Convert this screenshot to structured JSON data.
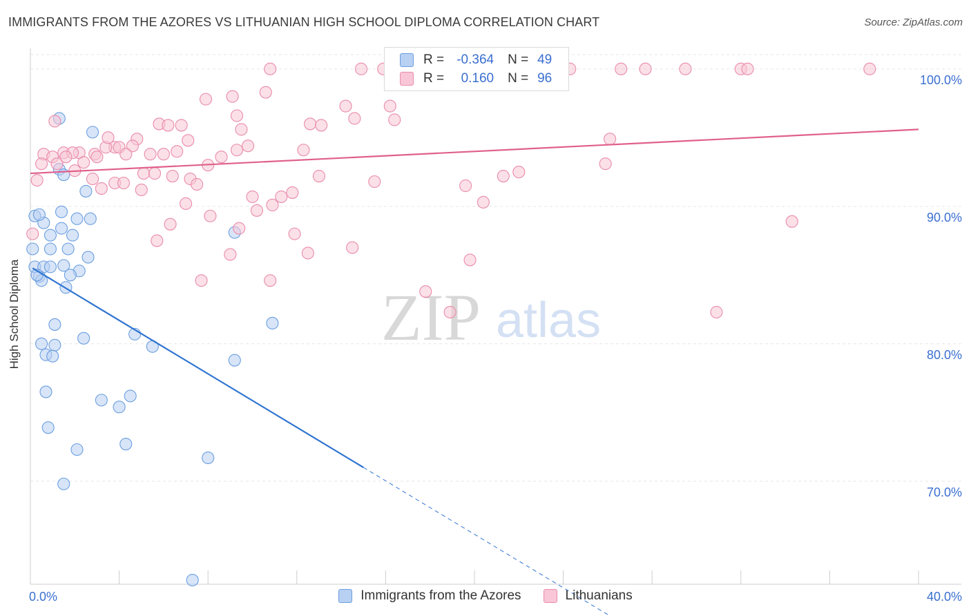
{
  "header": {
    "title": "IMMIGRANTS FROM THE AZORES VS LITHUANIAN HIGH SCHOOL DIPLOMA CORRELATION CHART",
    "source": "Source: ZipAtlas.com"
  },
  "watermark": {
    "zip": "ZIP",
    "atlas": "atlas"
  },
  "colors": {
    "azores_fill": "#b8d0f2",
    "azores_stroke": "#6a9ee0",
    "azores_line": "#2f74d0",
    "lith_fill": "#f8c6d6",
    "lith_stroke": "#e98aab",
    "lith_line": "#e0608a",
    "tick_text": "#3a6fd0"
  },
  "legend": {
    "r_label": "R =",
    "n_label": "N =",
    "azores": {
      "r": "-0.364",
      "n": "49"
    },
    "lith": {
      "r": "0.160",
      "n": "96"
    }
  },
  "chart_data": {
    "type": "scatter",
    "title": "IMMIGRANTS FROM THE AZORES VS LITHUANIAN HIGH SCHOOL DIPLOMA CORRELATION CHART",
    "xlabel": "",
    "ylabel": "High School Diploma",
    "xlim": [
      0,
      40
    ],
    "ylim": [
      62.5,
      101.5
    ],
    "x_tick_labels": [
      {
        "value": 0,
        "label": "0.0%"
      },
      {
        "value": 40,
        "label": "40.0%"
      }
    ],
    "y_tick_labels": [
      {
        "value": 70,
        "label": "70.0%"
      },
      {
        "value": 80,
        "label": "80.0%"
      },
      {
        "value": 90,
        "label": "90.0%"
      },
      {
        "value": 100,
        "label": "100.0%"
      }
    ],
    "grid": true,
    "legend_position": "top-center",
    "series": [
      {
        "name": "Immigrants from the Azores",
        "r": -0.364,
        "n": 49,
        "trend": {
          "x0": 0.1,
          "y0": 85.5,
          "x1": 15.0,
          "y1": 71.0,
          "dash_x1": 26.2,
          "dash_y1": 60.1
        },
        "points": [
          [
            1.3,
            96.4
          ],
          [
            2.8,
            95.4
          ],
          [
            1.3,
            92.7
          ],
          [
            1.5,
            92.3
          ],
          [
            2.5,
            91.1
          ],
          [
            0.2,
            89.3
          ],
          [
            0.6,
            88.8
          ],
          [
            1.4,
            89.6
          ],
          [
            2.1,
            89.1
          ],
          [
            1.4,
            88.4
          ],
          [
            0.9,
            87.9
          ],
          [
            1.9,
            87.9
          ],
          [
            0.1,
            86.9
          ],
          [
            0.9,
            86.9
          ],
          [
            1.7,
            86.9
          ],
          [
            2.6,
            86.3
          ],
          [
            0.2,
            85.6
          ],
          [
            0.6,
            85.6
          ],
          [
            0.9,
            85.6
          ],
          [
            1.5,
            85.7
          ],
          [
            2.2,
            85.3
          ],
          [
            0.4,
            84.9
          ],
          [
            0.5,
            84.6
          ],
          [
            1.8,
            85.0
          ],
          [
            1.6,
            84.1
          ],
          [
            9.2,
            88.1
          ],
          [
            1.1,
            81.4
          ],
          [
            10.9,
            81.5
          ],
          [
            2.4,
            80.4
          ],
          [
            0.5,
            80.0
          ],
          [
            1.1,
            79.9
          ],
          [
            4.7,
            80.7
          ],
          [
            5.5,
            79.8
          ],
          [
            0.7,
            79.2
          ],
          [
            1.0,
            79.1
          ],
          [
            9.2,
            78.8
          ],
          [
            0.7,
            76.5
          ],
          [
            3.2,
            75.9
          ],
          [
            4.5,
            76.2
          ],
          [
            4.0,
            75.4
          ],
          [
            0.8,
            73.9
          ],
          [
            4.3,
            72.7
          ],
          [
            2.1,
            72.3
          ],
          [
            8.0,
            71.7
          ],
          [
            1.5,
            69.8
          ],
          [
            7.3,
            62.8
          ],
          [
            0.3,
            85.0
          ],
          [
            2.7,
            89.1
          ],
          [
            0.4,
            89.4
          ]
        ]
      },
      {
        "name": "Lithuanians",
        "r": 0.16,
        "n": 96,
        "trend": {
          "x0": 0.0,
          "y0": 92.4,
          "x1": 40.0,
          "y1": 95.6
        },
        "points": [
          [
            10.8,
            100.0
          ],
          [
            14.9,
            100.0
          ],
          [
            15.9,
            100.0
          ],
          [
            22.6,
            100.0
          ],
          [
            23.6,
            100.0
          ],
          [
            24.3,
            100.0
          ],
          [
            26.6,
            100.0
          ],
          [
            27.7,
            100.0
          ],
          [
            29.5,
            100.0
          ],
          [
            32.0,
            100.0
          ],
          [
            32.3,
            100.0
          ],
          [
            37.8,
            100.0
          ],
          [
            9.1,
            98.0
          ],
          [
            10.6,
            98.3
          ],
          [
            7.9,
            97.8
          ],
          [
            14.2,
            97.3
          ],
          [
            16.2,
            97.3
          ],
          [
            9.3,
            96.6
          ],
          [
            14.6,
            96.4
          ],
          [
            16.4,
            96.3
          ],
          [
            5.8,
            96.0
          ],
          [
            6.2,
            95.9
          ],
          [
            6.8,
            95.9
          ],
          [
            12.6,
            96.0
          ],
          [
            13.1,
            95.9
          ],
          [
            9.5,
            95.6
          ],
          [
            4.8,
            94.9
          ],
          [
            7.1,
            94.8
          ],
          [
            26.1,
            94.9
          ],
          [
            4.6,
            94.4
          ],
          [
            9.8,
            94.4
          ],
          [
            3.8,
            94.3
          ],
          [
            3.4,
            94.3
          ],
          [
            4.0,
            94.3
          ],
          [
            1.5,
            93.9
          ],
          [
            2.2,
            93.9
          ],
          [
            1.9,
            93.9
          ],
          [
            2.9,
            93.8
          ],
          [
            0.6,
            93.8
          ],
          [
            1.0,
            93.6
          ],
          [
            1.6,
            93.6
          ],
          [
            4.3,
            93.8
          ],
          [
            5.4,
            93.8
          ],
          [
            6.0,
            93.8
          ],
          [
            9.3,
            94.1
          ],
          [
            12.3,
            94.1
          ],
          [
            3.0,
            93.6
          ],
          [
            2.4,
            93.2
          ],
          [
            0.5,
            93.1
          ],
          [
            1.2,
            93.1
          ],
          [
            8.0,
            93.0
          ],
          [
            25.9,
            93.1
          ],
          [
            5.1,
            92.4
          ],
          [
            5.6,
            92.4
          ],
          [
            6.4,
            92.2
          ],
          [
            7.2,
            92.0
          ],
          [
            13.0,
            92.2
          ],
          [
            21.3,
            92.2
          ],
          [
            22.0,
            92.5
          ],
          [
            0.3,
            91.9
          ],
          [
            2.8,
            92.0
          ],
          [
            3.8,
            91.7
          ],
          [
            4.2,
            91.7
          ],
          [
            15.5,
            91.8
          ],
          [
            19.6,
            91.5
          ],
          [
            7.5,
            91.6
          ],
          [
            3.2,
            91.3
          ],
          [
            5.0,
            91.2
          ],
          [
            10.0,
            90.7
          ],
          [
            11.3,
            90.7
          ],
          [
            7.0,
            90.2
          ],
          [
            10.9,
            90.1
          ],
          [
            20.4,
            90.3
          ],
          [
            10.2,
            89.7
          ],
          [
            8.1,
            89.3
          ],
          [
            6.3,
            88.7
          ],
          [
            9.4,
            88.4
          ],
          [
            34.3,
            88.9
          ],
          [
            0.1,
            88.0
          ],
          [
            11.9,
            88.0
          ],
          [
            5.7,
            87.5
          ],
          [
            14.5,
            87.0
          ],
          [
            9.0,
            86.5
          ],
          [
            12.5,
            86.6
          ],
          [
            19.8,
            86.1
          ],
          [
            7.7,
            84.6
          ],
          [
            10.8,
            84.6
          ],
          [
            17.8,
            83.8
          ],
          [
            18.9,
            82.3
          ],
          [
            30.9,
            82.3
          ],
          [
            1.1,
            96.2
          ],
          [
            3.5,
            95.0
          ],
          [
            8.6,
            93.6
          ],
          [
            11.8,
            91.0
          ],
          [
            6.6,
            94.0
          ],
          [
            2.0,
            92.6
          ]
        ]
      }
    ]
  }
}
